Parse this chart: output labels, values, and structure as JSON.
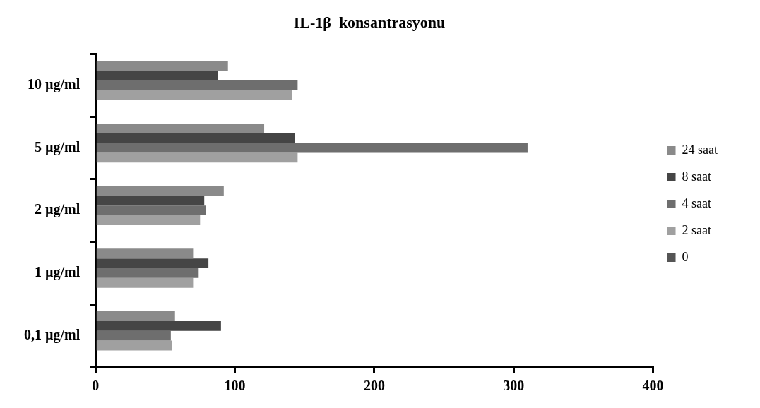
{
  "chart_data": {
    "type": "bar",
    "orientation": "horizontal",
    "title": "IL-1β  konsantrasyonu",
    "categories": [
      "10 µg/ml",
      "5 µg/ml",
      "2 µg/ml",
      "1 µg/ml",
      "0,1 µg/ml"
    ],
    "series": [
      {
        "name": "24 saat",
        "color": "#8a8a8a",
        "values": [
          95,
          121,
          92,
          70,
          57
        ]
      },
      {
        "name": "8 saat",
        "color": "#454545",
        "values": [
          88,
          143,
          78,
          81,
          90
        ]
      },
      {
        "name": "4 saat",
        "color": "#6e6e6e",
        "values": [
          145,
          310,
          79,
          74,
          54
        ]
      },
      {
        "name": "2 saat",
        "color": "#a0a0a0",
        "values": [
          141,
          145,
          75,
          70,
          55
        ]
      },
      {
        "name": "0",
        "color": "#555555",
        "values": [
          null,
          null,
          null,
          null,
          null
        ]
      }
    ],
    "xlim": [
      0,
      400
    ],
    "xticks": [
      0,
      100,
      200,
      300,
      400
    ],
    "grid": false,
    "legend": "right"
  }
}
